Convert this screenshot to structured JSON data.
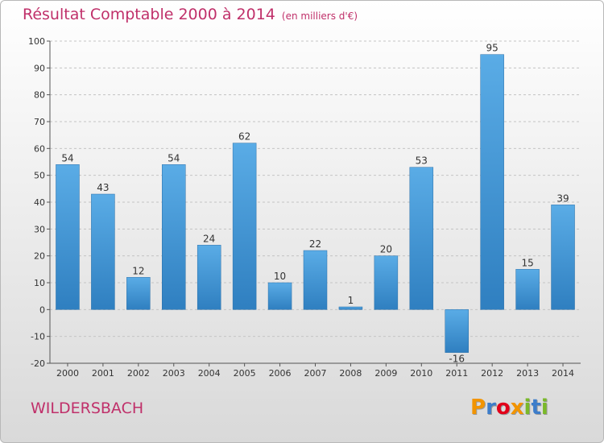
{
  "chart_data": {
    "type": "bar",
    "title": "Résultat Comptable 2000 à 2014",
    "subtitle": "(en milliers d'€)",
    "categories": [
      "2000",
      "2001",
      "2002",
      "2003",
      "2004",
      "2005",
      "2006",
      "2007",
      "2008",
      "2009",
      "2010",
      "2011",
      "2012",
      "2013",
      "2014"
    ],
    "values": [
      54,
      43,
      12,
      54,
      24,
      62,
      10,
      22,
      1,
      20,
      53,
      -16,
      95,
      15,
      39
    ],
    "value_labels": [
      "54",
      "43",
      "12",
      "54",
      "24",
      "62",
      "10",
      "22",
      "1",
      "20",
      "53",
      "-16",
      "95",
      "15",
      "39"
    ],
    "yticks": [
      100,
      90,
      80,
      70,
      60,
      50,
      40,
      30,
      20,
      10,
      0,
      -10,
      -20
    ],
    "ylim": [
      -20,
      100
    ],
    "xlabel": "",
    "ylabel": "",
    "grid": "horizontal dashed",
    "colors": {
      "bar_light": "#5aace6",
      "bar_dark": "#2f7fc0",
      "title": "#c0306a"
    }
  },
  "footer": {
    "commune": "WILDERSBACH"
  },
  "logo": {
    "letters": [
      "P",
      "r",
      "o",
      "x",
      "i",
      "t",
      "i"
    ],
    "colors": [
      "#f29400",
      "#3d7dca",
      "#e2001a",
      "#f29400",
      "#7ab929",
      "#3d7dca",
      "#7ab929"
    ]
  }
}
